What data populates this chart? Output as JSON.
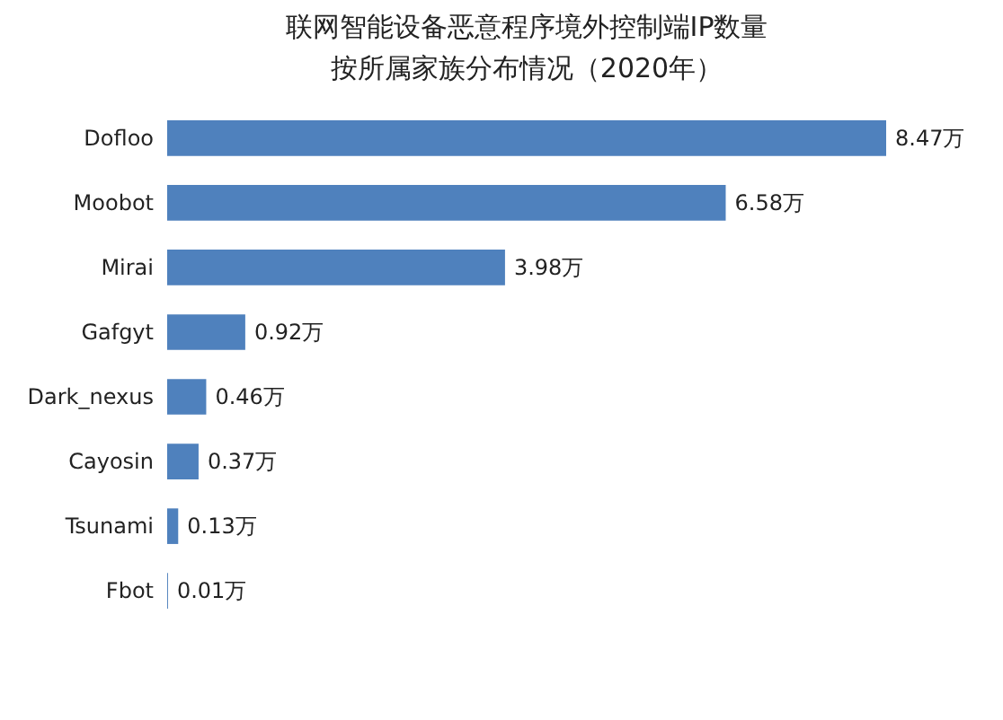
{
  "chart_data": {
    "type": "bar",
    "orientation": "horizontal",
    "title": "联网智能设备恶意程序境外控制端IP数量",
    "subtitle": "按所属家族分布情况（2020年）",
    "categories": [
      "Dofloo",
      "Moobot",
      "Mirai",
      "Gafgyt",
      "Dark_nexus",
      "Cayosin",
      "Tsunami",
      "Fbot"
    ],
    "values": [
      8.47,
      6.58,
      3.98,
      0.92,
      0.46,
      0.37,
      0.13,
      0.01
    ],
    "value_labels": [
      "8.47万",
      "6.58万",
      "3.98万",
      "0.92万",
      "0.46万",
      "0.37万",
      "0.13万",
      "0.01万"
    ],
    "color": "#4f81bd"
  }
}
